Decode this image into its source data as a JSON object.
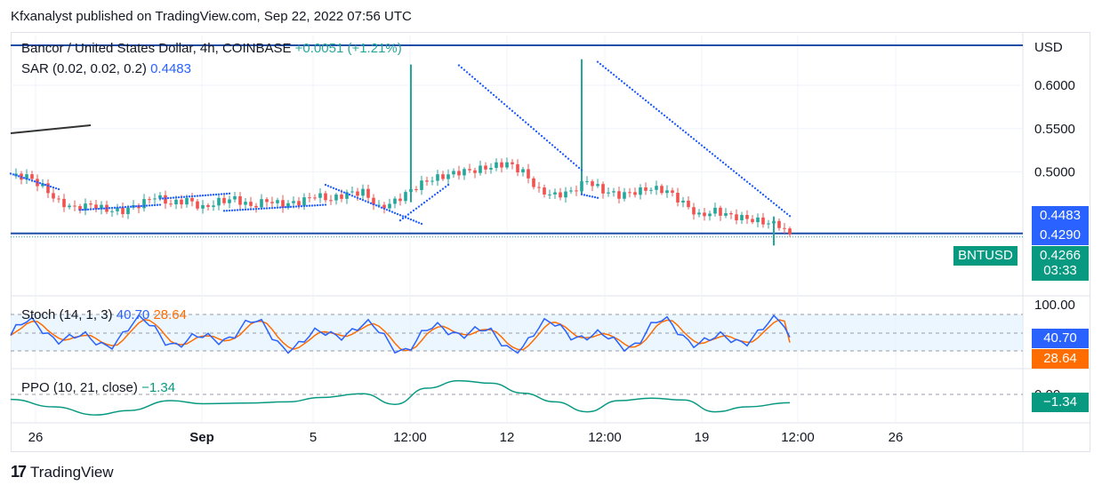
{
  "publisher_line": "Kfxanalyst published on TradingView.com, Sep 22, 2022 07:56 UTC",
  "branding": {
    "logo_mark": "17",
    "name": "TradingView"
  },
  "colors": {
    "up": "#26a69a",
    "down": "#ef5350",
    "sar": "#2962ff",
    "stoch_k": "#2962ff",
    "stoch_d": "#ff6d00",
    "ppo": "#089981",
    "hline": "#1e4ea8"
  },
  "main_legend": {
    "symbol": "Bancor / United States Dollar, 4h, COINBASE",
    "change": "+0.0051 (+1.21%)",
    "sar_label": "SAR (0.02, 0.02, 0.2)",
    "sar_value": "0.4483"
  },
  "price_scale": {
    "currency": "USD",
    "ticks": [
      "0.6000",
      "0.5500",
      "0.5000"
    ]
  },
  "price_tags": {
    "sar": "0.4483",
    "line": "0.4290",
    "symbol_label": "BNTUSD",
    "last": "0.4266",
    "countdown": "03:33"
  },
  "stoch": {
    "label": "Stoch (14, 1, 3)",
    "k_value": "40.70",
    "d_value": "28.64",
    "top_tick": "100.00"
  },
  "ppo": {
    "label": "PPO (10, 21, close)",
    "value": "−1.34",
    "zero_tick": "0.00"
  },
  "time_axis": [
    "26",
    "Sep",
    "5",
    "12:00",
    "12",
    "12:00",
    "19",
    "12:00",
    "26"
  ],
  "chart_data": {
    "type": "candlestick",
    "title": "Bancor / United States Dollar, 4h, COINBASE",
    "ylim": [
      0.41,
      0.64
    ],
    "yticks": [
      0.6,
      0.55,
      0.5
    ],
    "horizontal_line": 0.429,
    "last_price": 0.4266,
    "sar_last": 0.4483,
    "x_labels": [
      "26",
      "Sep",
      "5",
      "12:00",
      "12",
      "12:00",
      "19",
      "12:00",
      "26"
    ],
    "close_path": [
      [
        0,
        0.495
      ],
      [
        3,
        0.495
      ],
      [
        6,
        0.483
      ],
      [
        9,
        0.465
      ],
      [
        12,
        0.458
      ],
      [
        15,
        0.462
      ],
      [
        18,
        0.456
      ],
      [
        21,
        0.455
      ],
      [
        24,
        0.462
      ],
      [
        27,
        0.472
      ],
      [
        30,
        0.463
      ],
      [
        33,
        0.468
      ],
      [
        36,
        0.458
      ],
      [
        39,
        0.466
      ],
      [
        42,
        0.469
      ],
      [
        45,
        0.46
      ],
      [
        48,
        0.467
      ],
      [
        51,
        0.462
      ],
      [
        54,
        0.465
      ],
      [
        57,
        0.473
      ],
      [
        60,
        0.468
      ],
      [
        63,
        0.475
      ],
      [
        66,
        0.477
      ],
      [
        69,
        0.458
      ],
      [
        72,
        0.466
      ],
      [
        75,
        0.479
      ],
      [
        78,
        0.49
      ],
      [
        81,
        0.495
      ],
      [
        84,
        0.5
      ],
      [
        87,
        0.502
      ],
      [
        90,
        0.506
      ],
      [
        93,
        0.51
      ],
      [
        96,
        0.5
      ],
      [
        99,
        0.478
      ],
      [
        102,
        0.473
      ],
      [
        105,
        0.477
      ],
      [
        108,
        0.49
      ],
      [
        111,
        0.478
      ],
      [
        114,
        0.473
      ],
      [
        117,
        0.477
      ],
      [
        120,
        0.481
      ],
      [
        123,
        0.478
      ],
      [
        126,
        0.464
      ],
      [
        129,
        0.449
      ],
      [
        132,
        0.455
      ],
      [
        135,
        0.449
      ],
      [
        138,
        0.446
      ],
      [
        141,
        0.442
      ],
      [
        144,
        0.439
      ],
      [
        146,
        0.4266
      ]
    ],
    "wicks": [
      {
        "x": 75,
        "high": 0.624,
        "low": 0.465
      },
      {
        "x": 107,
        "high": 0.63,
        "low": 0.475
      },
      {
        "x": 143,
        "high": 0.448,
        "low": 0.415
      }
    ],
    "sar_segments": [
      {
        "from": 0,
        "to": 9,
        "start": 0.498,
        "end": 0.48
      },
      {
        "from": 13,
        "to": 28,
        "start": 0.456,
        "end": 0.462
      },
      {
        "from": 28,
        "to": 41,
        "start": 0.469,
        "end": 0.475
      },
      {
        "from": 40,
        "to": 59,
        "start": 0.455,
        "end": 0.462
      },
      {
        "from": 59,
        "to": 77,
        "start": 0.485,
        "end": 0.44
      },
      {
        "from": 73,
        "to": 82,
        "start": 0.444,
        "end": 0.485
      },
      {
        "from": 84,
        "to": 107,
        "start": 0.623,
        "end": 0.502
      },
      {
        "from": 107,
        "to": 110,
        "start": 0.474,
        "end": 0.47
      },
      {
        "from": 110,
        "to": 146,
        "start": 0.627,
        "end": 0.449
      }
    ],
    "stoch_range": [
      0,
      100
    ],
    "stoch_k_last": 40.7,
    "stoch_d_last": 28.64,
    "ppo_last": -1.34,
    "ppo_path": [
      [
        0,
        -0.8
      ],
      [
        8,
        -2.0
      ],
      [
        16,
        -3.3
      ],
      [
        22,
        -2.6
      ],
      [
        30,
        -1.0
      ],
      [
        36,
        -1.5
      ],
      [
        44,
        -1.4
      ],
      [
        52,
        -1.2
      ],
      [
        58,
        -0.5
      ],
      [
        66,
        0.1
      ],
      [
        72,
        -1.6
      ],
      [
        78,
        1.0
      ],
      [
        84,
        2.2
      ],
      [
        90,
        1.8
      ],
      [
        96,
        0.2
      ],
      [
        102,
        -1.2
      ],
      [
        108,
        -2.8
      ],
      [
        114,
        -1.0
      ],
      [
        120,
        -0.6
      ],
      [
        126,
        -0.9
      ],
      [
        132,
        -2.8
      ],
      [
        138,
        -2.0
      ],
      [
        146,
        -1.34
      ]
    ]
  }
}
